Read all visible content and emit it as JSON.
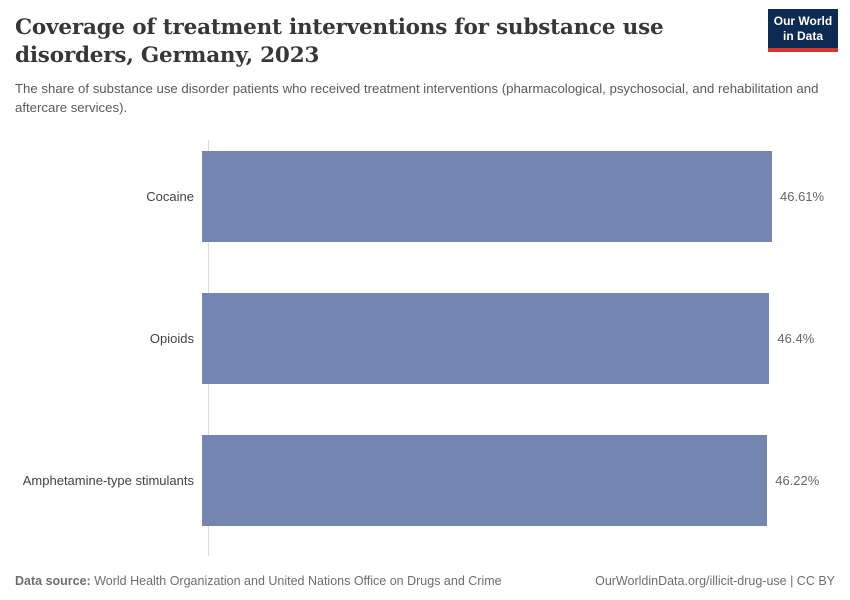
{
  "header": {
    "title": "Coverage of treatment interventions for substance use disorders, Germany, 2023",
    "subtitle": "The share of substance use disorder patients who received treatment interventions (pharmacological, psychosocial, and rehabilitation and aftercare services).",
    "logo": {
      "line1": "Our World",
      "line2": "in Data"
    }
  },
  "chart_data": {
    "type": "bar",
    "orientation": "horizontal",
    "title": "Coverage of treatment interventions for substance use disorders, Germany, 2023",
    "categories": [
      "Cocaine",
      "Opioids",
      "Amphetamine-type stimulants"
    ],
    "values": [
      46.61,
      46.4,
      46.22
    ],
    "value_labels": [
      "46.61%",
      "46.4%",
      "46.22%"
    ],
    "unit": "%",
    "xlim": [
      0,
      46.61
    ],
    "grid": false,
    "legend": "none",
    "bar_color": "#7286b0"
  },
  "footer": {
    "datasource_label": "Data source:",
    "datasource_text": " World Health Organization and United Nations Office on Drugs and Crime",
    "link_text": "OurWorldinData.org/illicit-drug-use | CC BY"
  },
  "colors": {
    "bar": "#7286b0",
    "axis_line": "#dcdcdc",
    "title_text": "#373737",
    "subtitle_text": "#5a5a5a",
    "label_text": "#424242",
    "value_text": "#666666",
    "footer_text": "#6e6e6e",
    "logo_background": "#0d2a52",
    "logo_underline": "#d8352d"
  }
}
